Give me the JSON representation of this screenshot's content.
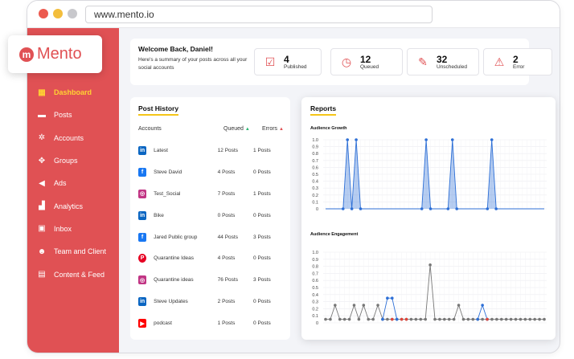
{
  "browser": {
    "url": "www.mento.io"
  },
  "brand": {
    "name": "Mento",
    "mark": "m",
    "color": "#e05154"
  },
  "sidebar": {
    "items": [
      {
        "label": "Dashboard",
        "icon": "dashboard-icon",
        "glyph": "▦",
        "active": true
      },
      {
        "label": "Posts",
        "icon": "posts-icon",
        "glyph": "▬"
      },
      {
        "label": "Accounts",
        "icon": "accounts-icon",
        "glyph": "✲"
      },
      {
        "label": "Groups",
        "icon": "groups-icon",
        "glyph": "✥"
      },
      {
        "label": "Ads",
        "icon": "megaphone-icon",
        "glyph": "◀"
      },
      {
        "label": "Analytics",
        "icon": "analytics-icon",
        "glyph": "▟"
      },
      {
        "label": "Inbox",
        "icon": "inbox-icon",
        "glyph": "▣"
      },
      {
        "label": "Team and Client",
        "icon": "team-icon",
        "glyph": "☻"
      },
      {
        "label": "Content & Feed",
        "icon": "content-icon",
        "glyph": "▤"
      }
    ]
  },
  "welcome": {
    "title": "Welcome Back, Daniel!",
    "subtitle": "Here's a summary of your posts across all your social accounts"
  },
  "stats": [
    {
      "value": "4",
      "label": "Published",
      "icon": "calendar-check-icon",
      "glyph": "☑"
    },
    {
      "value": "12",
      "label": "Queued",
      "icon": "calendar-clock-icon",
      "glyph": "◷"
    },
    {
      "value": "32",
      "label": "Unscheduled",
      "icon": "calendar-edit-icon",
      "glyph": "✎"
    },
    {
      "value": "2",
      "label": "Error",
      "icon": "warning-icon",
      "glyph": "⚠"
    }
  ],
  "post_history": {
    "title": "Post History",
    "columns": {
      "accounts": "Accounts",
      "queued": "Queued",
      "errors": "Errors"
    },
    "rows": [
      {
        "network": "linkedin",
        "name": "Latest",
        "queued": "12 Posts",
        "errors": "1 Posts"
      },
      {
        "network": "facebook",
        "name": "Steve David",
        "queued": "4 Posts",
        "errors": "0 Posts"
      },
      {
        "network": "instagram",
        "name": "Test_Social",
        "queued": "7 Posts",
        "errors": "1 Posts"
      },
      {
        "network": "linkedin",
        "name": "Bike",
        "queued": "0 Posts",
        "errors": "0 Posts"
      },
      {
        "network": "facebook",
        "name": "Jared Public group",
        "queued": "44 Posts",
        "errors": "3 Posts"
      },
      {
        "network": "pinterest",
        "name": "Quarantine Ideas",
        "queued": "4 Posts",
        "errors": "0 Posts"
      },
      {
        "network": "instagram",
        "name": "Quarantine ideas",
        "queued": "76 Posts",
        "errors": "3 Posts"
      },
      {
        "network": "linkedin",
        "name": "Steve Updates",
        "queued": "2 Posts",
        "errors": "0 Posts"
      },
      {
        "network": "youtube",
        "name": "podcast",
        "queued": "1 Posts",
        "errors": "0 Posts"
      }
    ]
  },
  "reports": {
    "title": "Reports"
  },
  "chart_data": [
    {
      "type": "area",
      "title": "Audience Growth",
      "ylim": [
        0,
        1.0
      ],
      "yticks": [
        "1.0",
        "0.9",
        "0.8",
        "0.7",
        "0.6",
        "0.5",
        "0.4",
        "0.3",
        "0.2",
        "0.1",
        "0"
      ],
      "grid": true,
      "series": [
        {
          "color": "#2d6fd6",
          "values": [
            0,
            0,
            0,
            0,
            0,
            1,
            0,
            1,
            0,
            0,
            0,
            0,
            0,
            0,
            0,
            0,
            0,
            0,
            0,
            0,
            0,
            0,
            0,
            1,
            0,
            0,
            0,
            0,
            0,
            1,
            0,
            0,
            0,
            0,
            0,
            0,
            0,
            0,
            1,
            0,
            0,
            0,
            0,
            0,
            0,
            0,
            0,
            0,
            0,
            0,
            0
          ]
        }
      ]
    },
    {
      "type": "line",
      "title": "Audience Engagement",
      "ylim": [
        0,
        1.0
      ],
      "yticks": [
        "1.0",
        "0.9",
        "0.8",
        "0.7",
        "0.6",
        "0.5",
        "0.4",
        "0.3",
        "0.2",
        "0.1",
        "0"
      ],
      "grid": true,
      "series": [
        {
          "color": "#777777",
          "values": [
            0.05,
            0.05,
            0.25,
            0.05,
            0.05,
            0.05,
            0.25,
            0.05,
            0.25,
            0.05,
            0.05,
            0.25,
            0.05,
            0.05,
            0.05,
            0.05,
            0.05,
            0.05,
            0.05,
            0.05,
            0.05,
            0.05,
            0.82,
            0.05,
            0.05,
            0.05,
            0.05,
            0.05,
            0.25,
            0.05,
            0.05,
            0.05,
            0.05,
            0.05,
            0.05,
            0.05,
            0.05,
            0.05,
            0.05,
            0.05,
            0.05,
            0.05,
            0.05,
            0.05,
            0.05,
            0.05,
            0.05
          ]
        },
        {
          "color": "#2d6fd6",
          "values": [
            null,
            null,
            null,
            null,
            null,
            null,
            null,
            null,
            null,
            null,
            null,
            null,
            0.05,
            0.35,
            0.35,
            0.05,
            null,
            null,
            null,
            null,
            null,
            null,
            null,
            null,
            null,
            null,
            null,
            null,
            null,
            null,
            null,
            null,
            0.05,
            0.25,
            0.05,
            null,
            null,
            null,
            null,
            null,
            null,
            null,
            null,
            null,
            null,
            null,
            null
          ]
        }
      ],
      "error_points": [
        14,
        16,
        17,
        34
      ]
    }
  ]
}
